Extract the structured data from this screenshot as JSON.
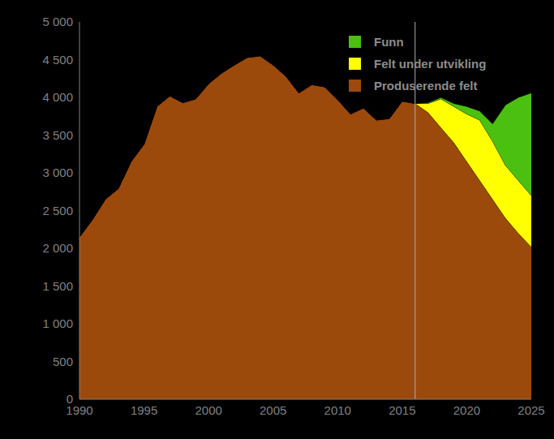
{
  "chart_data": {
    "type": "area",
    "stacked": true,
    "grid": false,
    "legend": "upper right",
    "x": [
      1990,
      1991,
      1992,
      1993,
      1994,
      1995,
      1996,
      1997,
      1998,
      1999,
      2000,
      2001,
      2002,
      2003,
      2004,
      2005,
      2006,
      2007,
      2008,
      2009,
      2010,
      2011,
      2012,
      2013,
      2014,
      2015,
      2016,
      2017,
      2018,
      2019,
      2020,
      2021,
      2022,
      2023,
      2024,
      2025
    ],
    "series": [
      {
        "name": "Produserende felt",
        "color": "#9c4a0c",
        "values": [
          2150,
          2380,
          2650,
          2790,
          3150,
          3380,
          3880,
          4020,
          3930,
          3980,
          4180,
          4320,
          4430,
          4530,
          4550,
          4430,
          4280,
          4060,
          4170,
          4140,
          3970,
          3780,
          3860,
          3700,
          3720,
          3950,
          3920,
          3800,
          3600,
          3400,
          3150,
          2900,
          2650,
          2400,
          2200,
          2020
        ]
      },
      {
        "name": "Felt under utvikling",
        "color": "#ffff00",
        "values": [
          0,
          0,
          0,
          0,
          0,
          0,
          0,
          0,
          0,
          0,
          0,
          0,
          0,
          0,
          0,
          0,
          0,
          0,
          0,
          0,
          0,
          0,
          0,
          0,
          0,
          0,
          0,
          120,
          380,
          480,
          630,
          800,
          770,
          700,
          700,
          680
        ]
      },
      {
        "name": "Funn",
        "color": "#4cc010",
        "values": [
          0,
          0,
          0,
          0,
          0,
          0,
          0,
          0,
          0,
          0,
          0,
          0,
          0,
          0,
          0,
          0,
          0,
          0,
          0,
          0,
          0,
          0,
          0,
          0,
          0,
          0,
          0,
          10,
          20,
          40,
          100,
          120,
          230,
          800,
          1100,
          1360
        ]
      }
    ],
    "xlim": [
      1990,
      2025
    ],
    "xticks": [
      1990,
      1995,
      2000,
      2005,
      2010,
      2015,
      2020,
      2025
    ],
    "ylim": [
      0,
      5000
    ],
    "yticks": [
      0,
      500,
      {
        "value": 1000,
        "label": "1 000"
      },
      {
        "value": 1500,
        "label": "1 500"
      },
      {
        "value": 2000,
        "label": "2 000"
      },
      {
        "value": 2500,
        "label": "2 500"
      },
      {
        "value": 3000,
        "label": "3 000"
      },
      {
        "value": 3500,
        "label": "3 500"
      },
      {
        "value": 4000,
        "label": "4 000"
      },
      {
        "value": 4500,
        "label": "4 500"
      },
      {
        "value": 5000,
        "label": "5 000"
      }
    ],
    "vertical_line_x": 2016
  }
}
